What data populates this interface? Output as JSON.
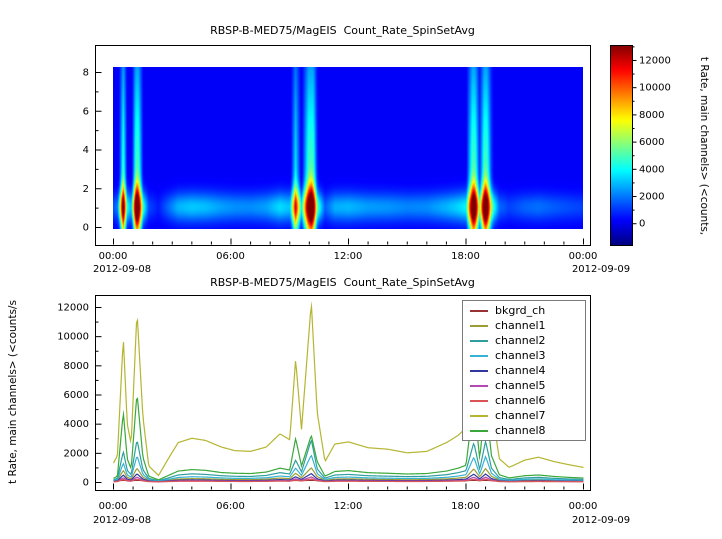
{
  "colors": {
    "background": "#ffffff",
    "axis": "#000000"
  },
  "time_axis": {
    "tick_hours": [
      0,
      6,
      12,
      18,
      24
    ],
    "tick_labels": [
      "00:00",
      "06:00",
      "12:00",
      "18:00",
      "00:00"
    ],
    "date_left": "2012-09-08",
    "date_right": "2012-09-09"
  },
  "chart_data": [
    {
      "type": "heatmap",
      "title": "RBSP-B-MED75/MagEIS  Count_Rate_SpinSetAvg",
      "x_axis": "time UT from 2012-09-08 00:00 to 2012-09-09 00:00",
      "ylim": [
        0,
        8
      ],
      "yticks": [
        0,
        2,
        4,
        6,
        8
      ],
      "colormap": "jet",
      "colorbar": {
        "ticks": [
          0,
          2000,
          4000,
          6000,
          8000,
          10000,
          12000
        ],
        "label": "t Rate, main channels> (<counts,",
        "range": [
          -1600,
          13100
        ]
      },
      "model": {
        "band_center_y": 1.05,
        "base": 150
      },
      "profile": {
        "hours": [
          0,
          0.2,
          0.5,
          0.7,
          0.9,
          1.2,
          1.5,
          1.8,
          2.3,
          2.8,
          3.3,
          4.0,
          4.7,
          5.5,
          6.2,
          7.0,
          7.8,
          8.5,
          9.0,
          9.3,
          9.6,
          10.1,
          10.4,
          10.8,
          11.3,
          12.0,
          13.0,
          14.0,
          15.0,
          16.0,
          17.0,
          17.6,
          18.0,
          18.4,
          18.7,
          19.0,
          19.3,
          19.7,
          20.2,
          21.0,
          21.7,
          22.5,
          23.2,
          24.0
        ],
        "counts": [
          1300,
          1800,
          9900,
          4000,
          2600,
          11700,
          4500,
          1100,
          450,
          1600,
          2700,
          3000,
          2850,
          2400,
          2150,
          2100,
          2400,
          3300,
          2900,
          8400,
          3600,
          12300,
          4800,
          1400,
          2600,
          2750,
          2350,
          2250,
          2000,
          2100,
          2700,
          3200,
          3700,
          11400,
          4800,
          11500,
          5200,
          1600,
          1000,
          1500,
          1700,
          1400,
          1200,
          1000
        ]
      }
    },
    {
      "type": "line",
      "title": "RBSP-B-MED75/MagEIS  Count_Rate_SpinSetAvg",
      "ylabel": "t Rate, main channels> (<counts/s",
      "ylim": [
        -550,
        12820
      ],
      "yticks": [
        0,
        2000,
        4000,
        6000,
        8000,
        10000,
        12000
      ],
      "legend_position": "top-right",
      "x_hours": [
        0,
        0.2,
        0.5,
        0.7,
        0.9,
        1.2,
        1.5,
        1.8,
        2.3,
        2.8,
        3.3,
        4.0,
        4.7,
        5.5,
        6.2,
        7.0,
        7.8,
        8.5,
        9.0,
        9.3,
        9.6,
        10.1,
        10.4,
        10.8,
        11.3,
        12.0,
        13.0,
        14.0,
        15.0,
        16.0,
        17.0,
        17.6,
        18.0,
        18.4,
        18.7,
        19.0,
        19.3,
        19.7,
        20.2,
        21.0,
        21.7,
        22.5,
        23.2,
        24.0
      ],
      "series": [
        {
          "name": "bkgrd_ch",
          "color": "#993333",
          "values": [
            90,
            92,
            110,
            100,
            95,
            112,
            100,
            92,
            88,
            90,
            95,
            97,
            96,
            93,
            92,
            92,
            94,
            97,
            95,
            105,
            97,
            113,
            101,
            91,
            95,
            96,
            93,
            92,
            91,
            92,
            95,
            97,
            99,
            111,
            100,
            112,
            101,
            92,
            89,
            91,
            92,
            90,
            89,
            88
          ]
        },
        {
          "name": "channel1",
          "color": "#9d9d33",
          "values": [
            70,
            110,
            800,
            320,
            210,
            950,
            340,
            110,
            40,
            120,
            200,
            230,
            220,
            180,
            165,
            160,
            190,
            270,
            230,
            600,
            290,
            980,
            370,
            110,
            200,
            220,
            185,
            170,
            155,
            165,
            210,
            270,
            320,
            900,
            350,
            920,
            390,
            125,
            75,
            115,
            135,
            105,
            90,
            75
          ]
        },
        {
          "name": "channel2",
          "color": "#2e9e9e",
          "values": [
            150,
            250,
            2100,
            800,
            500,
            2900,
            850,
            250,
            90,
            280,
            480,
            560,
            520,
            430,
            390,
            380,
            450,
            640,
            550,
            1500,
            700,
            2900,
            900,
            260,
            480,
            520,
            430,
            400,
            370,
            390,
            500,
            640,
            780,
            2700,
            850,
            2800,
            950,
            300,
            170,
            280,
            320,
            250,
            210,
            180
          ]
        },
        {
          "name": "channel3",
          "color": "#35b2d5",
          "values": [
            100,
            170,
            1300,
            500,
            320,
            1800,
            540,
            160,
            60,
            180,
            310,
            360,
            340,
            280,
            250,
            250,
            290,
            410,
            360,
            950,
            450,
            1850,
            580,
            170,
            310,
            340,
            280,
            260,
            240,
            250,
            320,
            410,
            500,
            1700,
            540,
            1750,
            600,
            190,
            110,
            180,
            210,
            160,
            140,
            115
          ]
        },
        {
          "name": "channel4",
          "color": "#32379e",
          "values": [
            45,
            70,
            480,
            195,
            130,
            560,
            205,
            70,
            25,
            75,
            125,
            145,
            135,
            110,
            100,
            100,
            115,
            165,
            140,
            360,
            175,
            580,
            220,
            70,
            125,
            135,
            112,
            103,
            95,
            100,
            128,
            165,
            195,
            540,
            210,
            550,
            235,
            75,
            45,
            70,
            82,
            64,
            55,
            46
          ]
        },
        {
          "name": "channel5",
          "color": "#b24ab2",
          "values": [
            28,
            43,
            290,
            118,
            80,
            340,
            125,
            42,
            15,
            46,
            76,
            88,
            82,
            68,
            62,
            60,
            70,
            100,
            86,
            220,
            106,
            350,
            133,
            43,
            76,
            82,
            68,
            63,
            58,
            61,
            78,
            100,
            118,
            330,
            128,
            335,
            142,
            46,
            27,
            42,
            50,
            39,
            33,
            28
          ]
        },
        {
          "name": "channel6",
          "color": "#d95555",
          "values": [
            17,
            26,
            175,
            71,
            48,
            205,
            75,
            25,
            9,
            28,
            46,
            53,
            50,
            41,
            37,
            36,
            42,
            60,
            52,
            132,
            64,
            210,
            80,
            26,
            46,
            50,
            41,
            38,
            35,
            37,
            47,
            60,
            71,
            198,
            77,
            202,
            85,
            28,
            16,
            25,
            30,
            23,
            20,
            17
          ]
        },
        {
          "name": "channel7",
          "color": "#b5b531",
          "values": [
            1300,
            1800,
            9900,
            4000,
            2600,
            11700,
            4500,
            1100,
            450,
            1600,
            2700,
            3000,
            2850,
            2400,
            2150,
            2100,
            2400,
            3300,
            2900,
            8400,
            3600,
            12300,
            4800,
            1400,
            2600,
            2750,
            2350,
            2250,
            2000,
            2100,
            2700,
            3200,
            3700,
            11400,
            4800,
            11500,
            5200,
            1600,
            1000,
            1500,
            1700,
            1400,
            1200,
            1000
          ]
        },
        {
          "name": "channel8",
          "color": "#3aa83a",
          "values": [
            250,
            400,
            4800,
            1600,
            900,
            6100,
            1700,
            400,
            150,
            450,
            750,
            850,
            800,
            650,
            600,
            580,
            680,
            950,
            820,
            3000,
            1100,
            3200,
            1400,
            400,
            720,
            780,
            640,
            600,
            550,
            580,
            750,
            950,
            1150,
            5600,
            1600,
            5600,
            1800,
            500,
            280,
            430,
            480,
            380,
            320,
            270
          ]
        }
      ]
    }
  ]
}
